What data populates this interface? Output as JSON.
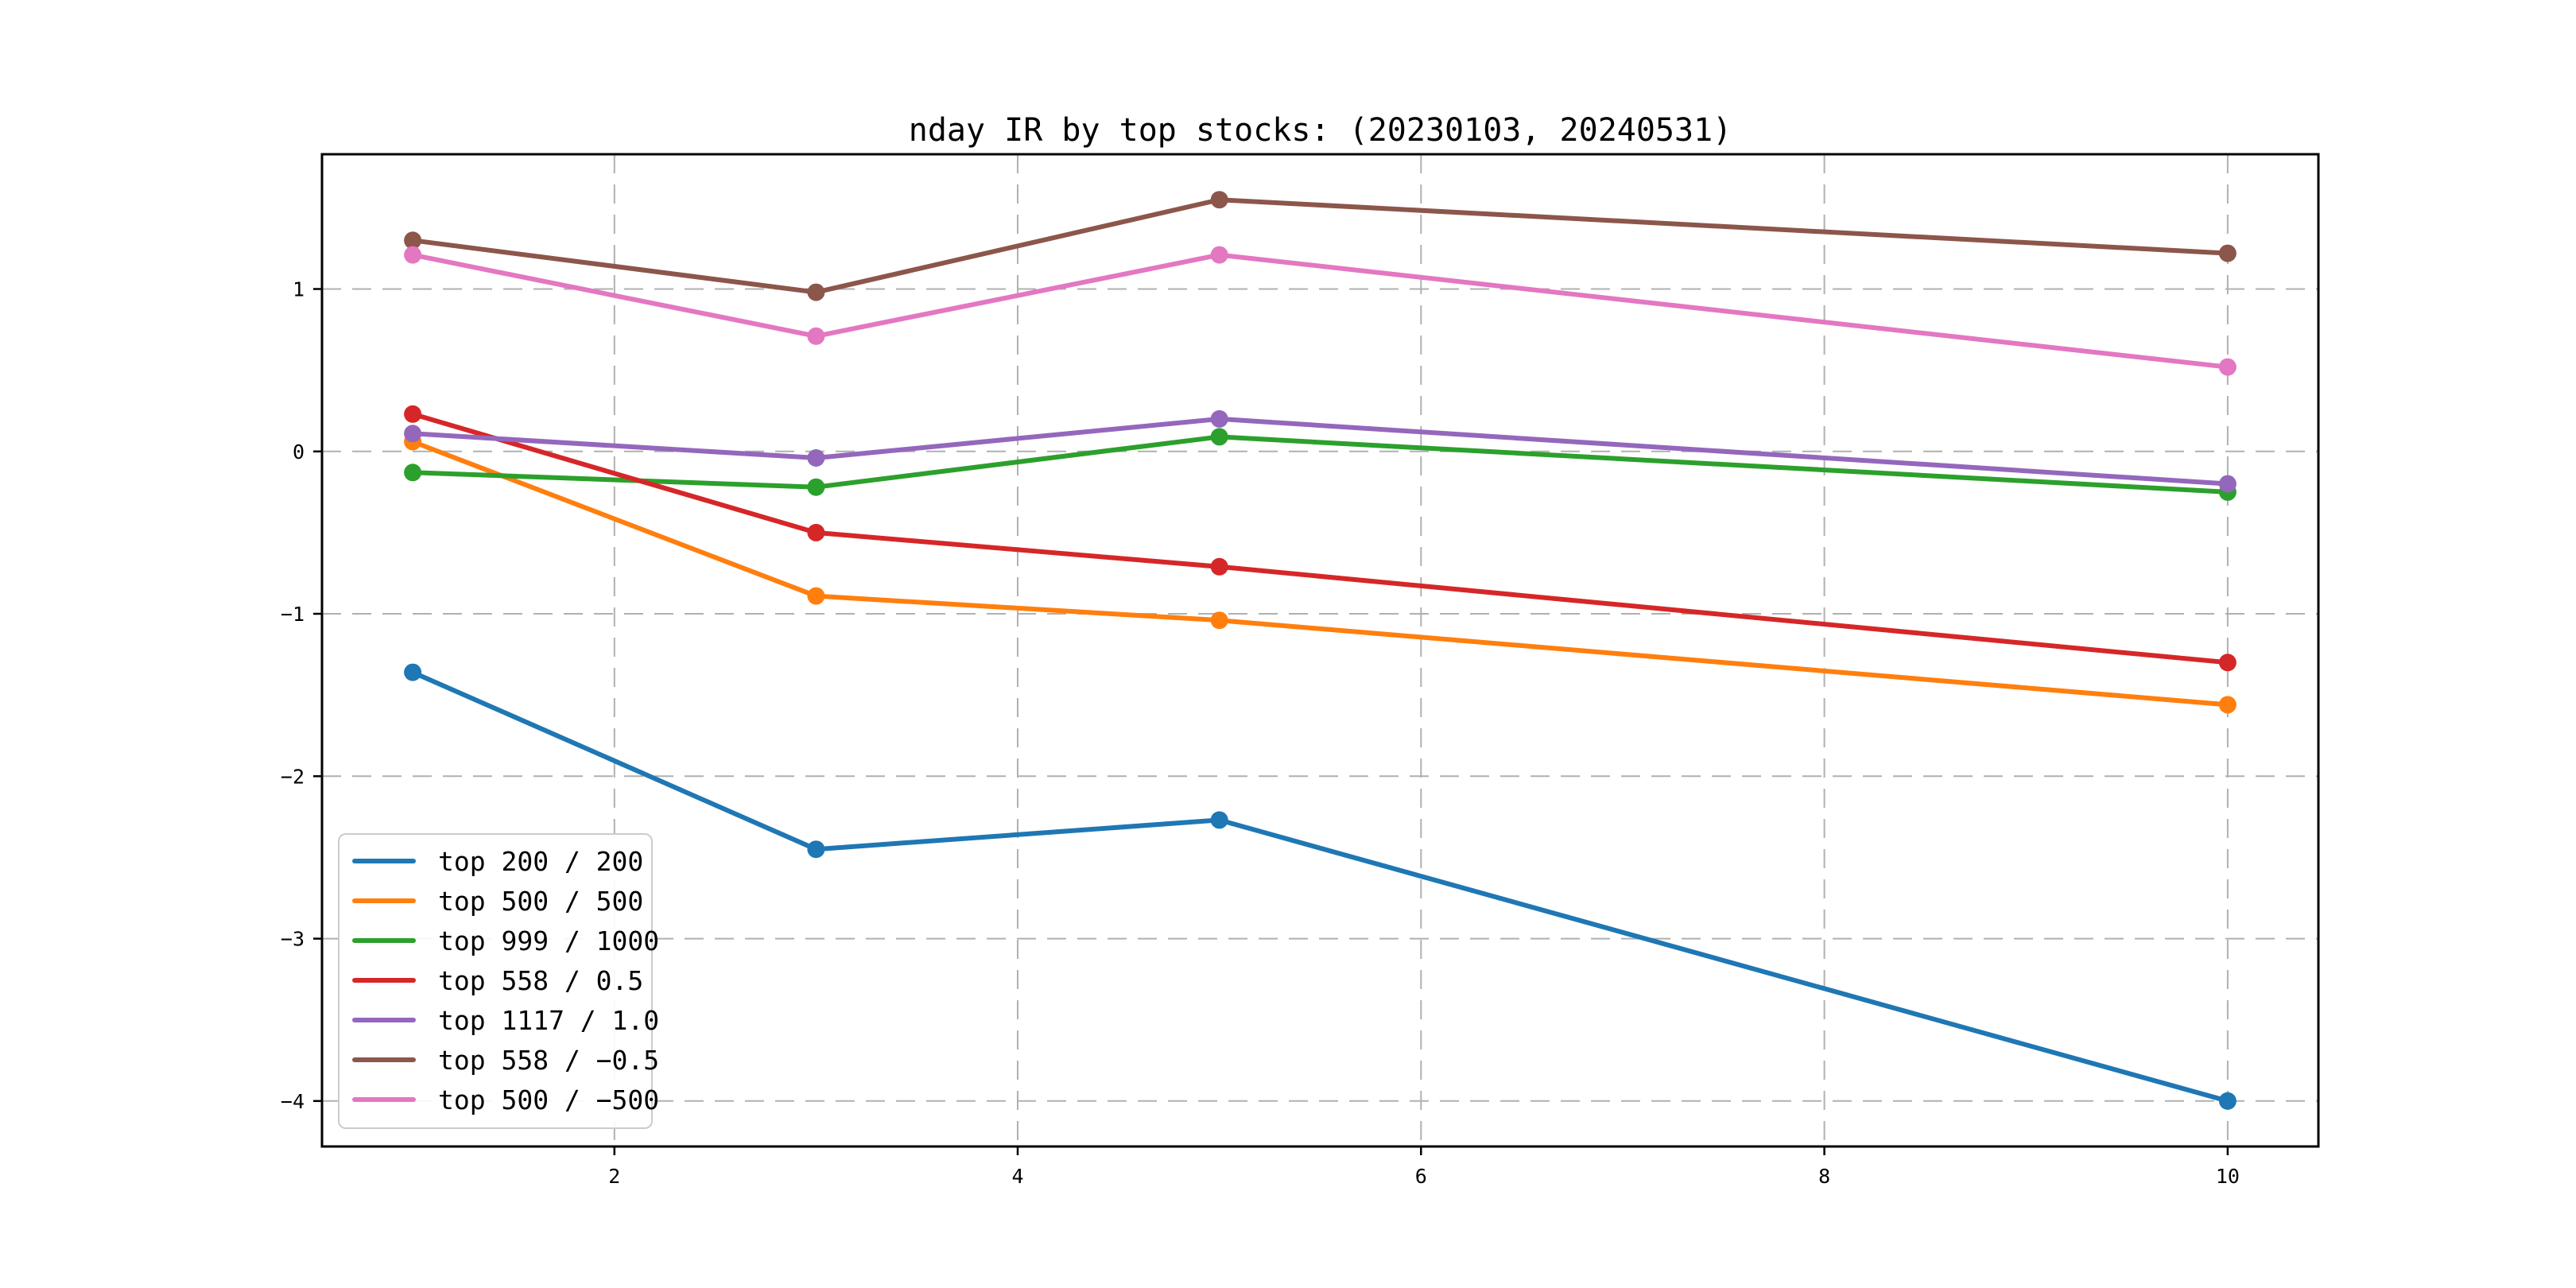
{
  "title": "nday IR by top stocks: (20230103, 20240531)",
  "chart_data": {
    "type": "line",
    "title": "nday IR by top stocks: (20230103, 20240531)",
    "xlabel": "",
    "ylabel": "",
    "x": [
      1,
      3,
      5,
      10
    ],
    "series": [
      {
        "name": "top 200 / 200",
        "color": "#1f77b4",
        "values": [
          -1.36,
          -2.45,
          -2.27,
          -4.0
        ]
      },
      {
        "name": "top 500 / 500",
        "color": "#ff7f0e",
        "values": [
          0.06,
          -0.89,
          -1.04,
          -1.56
        ]
      },
      {
        "name": "top 999 / 1000",
        "color": "#2ca02c",
        "values": [
          -0.13,
          -0.22,
          0.09,
          -0.25
        ]
      },
      {
        "name": "top 558 / 0.5",
        "color": "#d62728",
        "values": [
          0.23,
          -0.5,
          -0.71,
          -1.3
        ]
      },
      {
        "name": "top 1117 / 1.0",
        "color": "#9467bd",
        "values": [
          0.11,
          -0.04,
          0.2,
          -0.2
        ]
      },
      {
        "name": "top 558 / −0.5",
        "color": "#8c564b",
        "values": [
          1.3,
          0.98,
          1.55,
          1.22
        ]
      },
      {
        "name": "top 500 / −500",
        "color": "#e377c2",
        "values": [
          1.21,
          0.71,
          1.21,
          0.52
        ]
      }
    ],
    "xlim": [
      0.55,
      10.45
    ],
    "ylim": [
      -4.28,
      1.83
    ],
    "x_ticks": [
      2,
      4,
      6,
      8,
      10
    ],
    "x_tick_labels": [
      "2",
      "4",
      "6",
      "8",
      "10"
    ],
    "y_ticks": [
      1,
      0,
      -1,
      -2,
      -3,
      -4
    ],
    "y_tick_labels": [
      "1",
      "0",
      "−1",
      "−2",
      "−3",
      "−4"
    ],
    "grid": "dashed both axes",
    "grid_color": "#b0b0b0",
    "marker": "o",
    "legend_position": "lower left"
  }
}
